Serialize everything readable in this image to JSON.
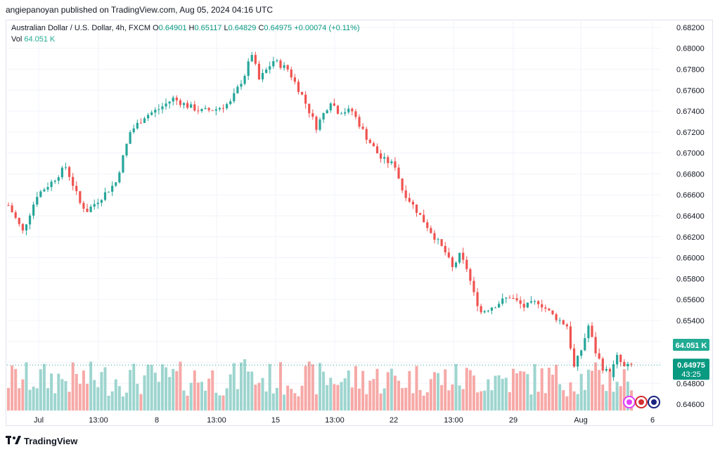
{
  "header": {
    "published_line": "angiepanoyan published on TradingView.com, Aug 05, 2024 04:16 UTC"
  },
  "legend": {
    "symbol": "Australian Dollar / U.S. Dollar, 4h, FXCM",
    "o_label": "O",
    "o_value": "0.64901",
    "h_label": "H",
    "h_value": "0.65117",
    "l_label": "L",
    "l_value": "0.64829",
    "c_label": "C",
    "c_value": "0.64975",
    "change": "+0.00074 (+0.11%)",
    "vol_label": "Vol",
    "vol_value": "64.051 K"
  },
  "footer": {
    "brand": "TradingView"
  },
  "colors": {
    "up": "#26a69a",
    "down": "#ef5350",
    "vol_up": "#9ed5cf",
    "vol_down": "#f6a9a7",
    "grid": "#f0f3fa"
  },
  "chart_data": {
    "type": "candlestick",
    "ylim": [
      0.6454,
      0.6826
    ],
    "y_ticks": [
      "0.68200",
      "0.68000",
      "0.67800",
      "0.67600",
      "0.67400",
      "0.67200",
      "0.67000",
      "0.66800",
      "0.66600",
      "0.66400",
      "0.66200",
      "0.66000",
      "0.65800",
      "0.65600",
      "0.65400",
      "0.65200",
      "0.65000",
      "0.64800",
      "0.64600"
    ],
    "x_ticks": [
      "Jul",
      "13:00",
      "8",
      "13:00",
      "15",
      "13:00",
      "22",
      "13:00",
      "29",
      "Aug",
      "6"
    ],
    "last_price_label": "0.64975",
    "countdown_label": "43:25",
    "volume_label": "64.051 K",
    "anchors": [
      [
        0,
        0.665
      ],
      [
        4,
        0.6625
      ],
      [
        8,
        0.666
      ],
      [
        12,
        0.6672
      ],
      [
        16,
        0.6687
      ],
      [
        18,
        0.667
      ],
      [
        20,
        0.6652
      ],
      [
        22,
        0.6645
      ],
      [
        26,
        0.6658
      ],
      [
        30,
        0.6672
      ],
      [
        34,
        0.672
      ],
      [
        38,
        0.6735
      ],
      [
        42,
        0.6742
      ],
      [
        46,
        0.6752
      ],
      [
        50,
        0.6745
      ],
      [
        54,
        0.674
      ],
      [
        58,
        0.6742
      ],
      [
        62,
        0.6748
      ],
      [
        66,
        0.6775
      ],
      [
        68,
        0.6795
      ],
      [
        70,
        0.677
      ],
      [
        74,
        0.6788
      ],
      [
        78,
        0.678
      ],
      [
        82,
        0.6755
      ],
      [
        86,
        0.6725
      ],
      [
        90,
        0.675
      ],
      [
        92,
        0.674
      ],
      [
        96,
        0.674
      ],
      [
        100,
        0.6715
      ],
      [
        104,
        0.6695
      ],
      [
        108,
        0.6688
      ],
      [
        110,
        0.6665
      ],
      [
        114,
        0.6645
      ],
      [
        118,
        0.6625
      ],
      [
        122,
        0.6605
      ],
      [
        124,
        0.659
      ],
      [
        126,
        0.6602
      ],
      [
        128,
        0.659
      ],
      [
        130,
        0.6565
      ],
      [
        132,
        0.6548
      ],
      [
        136,
        0.6555
      ],
      [
        140,
        0.6563
      ],
      [
        144,
        0.6553
      ],
      [
        148,
        0.6558
      ],
      [
        152,
        0.6545
      ],
      [
        156,
        0.6535
      ],
      [
        158,
        0.6495
      ],
      [
        160,
        0.6512
      ],
      [
        162,
        0.6535
      ],
      [
        164,
        0.651
      ],
      [
        166,
        0.6495
      ],
      [
        168,
        0.6488
      ],
      [
        170,
        0.6505
      ],
      [
        172,
        0.6495
      ],
      [
        174,
        0.6497
      ]
    ],
    "n_candles": 175
  }
}
